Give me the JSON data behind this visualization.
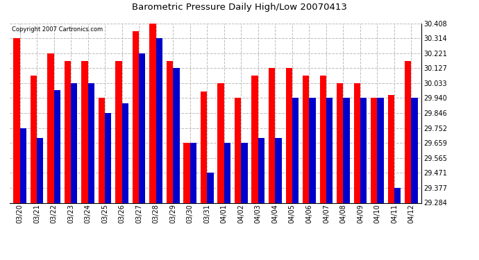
{
  "title": "Barometric Pressure Daily High/Low 20070413",
  "copyright": "Copyright 2007 Cartronics.com",
  "dates": [
    "03/20",
    "03/21",
    "03/22",
    "03/23",
    "03/24",
    "03/25",
    "03/26",
    "03/27",
    "03/28",
    "03/29",
    "03/30",
    "03/31",
    "04/01",
    "04/02",
    "04/03",
    "04/04",
    "04/05",
    "04/06",
    "04/07",
    "04/08",
    "04/09",
    "04/10",
    "04/11",
    "04/12"
  ],
  "highs": [
    30.314,
    30.08,
    30.221,
    30.174,
    30.174,
    29.94,
    30.174,
    30.36,
    30.408,
    30.174,
    29.659,
    29.98,
    30.033,
    29.94,
    30.08,
    30.127,
    30.127,
    30.08,
    30.08,
    30.033,
    30.033,
    29.94,
    29.96,
    30.174
  ],
  "lows": [
    29.752,
    29.69,
    29.99,
    30.033,
    30.033,
    29.846,
    29.908,
    30.221,
    30.314,
    30.127,
    29.659,
    29.471,
    29.659,
    29.659,
    29.69,
    29.69,
    29.94,
    29.94,
    29.94,
    29.94,
    29.94,
    29.94,
    29.377,
    29.94
  ],
  "high_color": "#ff0000",
  "low_color": "#0000cc",
  "background_color": "#ffffff",
  "grid_color": "#bbbbbb",
  "ylim_min": 29.284,
  "ylim_max": 30.408,
  "yticks": [
    29.284,
    29.377,
    29.471,
    29.565,
    29.659,
    29.752,
    29.846,
    29.94,
    30.033,
    30.127,
    30.221,
    30.314,
    30.408
  ],
  "figwidth": 6.9,
  "figheight": 3.75,
  "dpi": 100
}
